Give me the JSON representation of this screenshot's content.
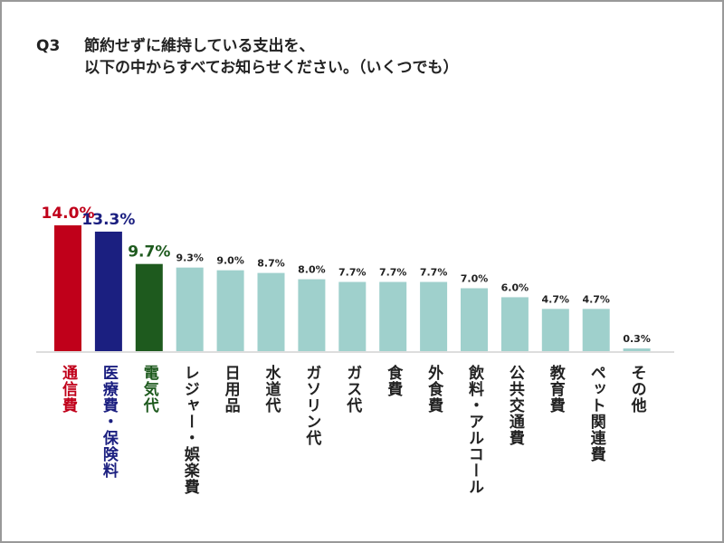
{
  "chart_data": {
    "type": "bar",
    "question_number": "Q3",
    "title": [
      "節約せずに維持している支出を、",
      "以下の中からすべてお知らせください。（いくつでも）"
    ],
    "categories": [
      "通信費",
      "医療費・保険料",
      "電気代",
      "レジャー・娯楽費",
      "日用品",
      "水道代",
      "ガソリン代",
      "ガス代",
      "食費",
      "外食費",
      "飲料・アルコール",
      "公共交通費",
      "教育費",
      "ペット関連費",
      "その他"
    ],
    "values": [
      14.0,
      13.3,
      9.7,
      9.3,
      9.0,
      8.7,
      8.0,
      7.7,
      7.7,
      7.7,
      7.0,
      6.0,
      4.7,
      4.7,
      0.3
    ],
    "value_labels": [
      "14.0%",
      "13.3%",
      "9.7%",
      "9.3%",
      "9.0%",
      "8.7%",
      "8.0%",
      "7.7%",
      "7.7%",
      "7.7%",
      "7.0%",
      "6.0%",
      "4.7%",
      "4.7%",
      "0.3%"
    ],
    "colors": [
      "#c0001a",
      "#1b1f80",
      "#1e5a1e",
      "#9fd0cc",
      "#9fd0cc",
      "#9fd0cc",
      "#9fd0cc",
      "#9fd0cc",
      "#9fd0cc",
      "#9fd0cc",
      "#9fd0cc",
      "#9fd0cc",
      "#9fd0cc",
      "#9fd0cc",
      "#9fd0cc"
    ],
    "label_colors": [
      "#c0001a",
      "#1b1f80",
      "#1e5a1e",
      "#222222",
      "#222222",
      "#222222",
      "#222222",
      "#222222",
      "#222222",
      "#222222",
      "#222222",
      "#222222",
      "#222222",
      "#222222",
      "#222222"
    ]
  }
}
